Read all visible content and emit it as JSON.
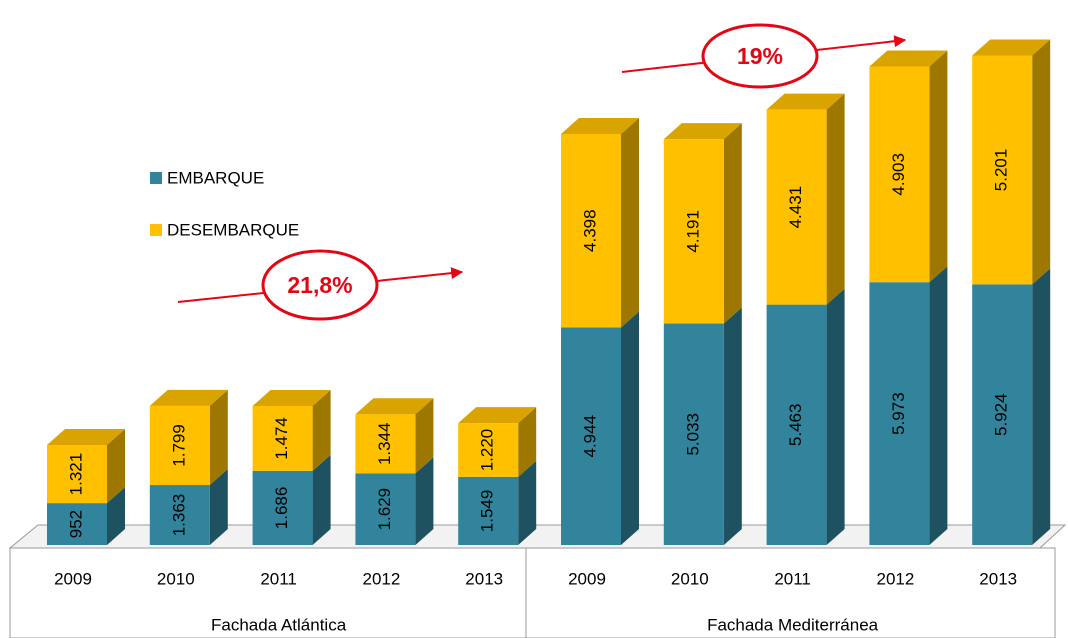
{
  "chart_data": {
    "type": "bar3d-stacked",
    "categories": [
      "2009",
      "2010",
      "2011",
      "2012",
      "2013",
      "2009",
      "2010",
      "2011",
      "2012",
      "2013"
    ],
    "groups": [
      "Fachada Atlántica",
      "Fachada Mediterránea"
    ],
    "series": [
      {
        "name": "EMBARQUE",
        "color": "#31849b",
        "values": [
          952,
          1363,
          1686,
          1629,
          1549,
          4944,
          5033,
          5463,
          5973,
          5924
        ],
        "value_labels": [
          "952",
          "1.363",
          "1.686",
          "1.629",
          "1.549",
          "4.944",
          "5.033",
          "5.463",
          "5.973",
          "5.924"
        ]
      },
      {
        "name": "DESEMBARQUE",
        "color": "#ffc000",
        "values": [
          1321,
          1799,
          1474,
          1344,
          1220,
          4398,
          4191,
          4431,
          4903,
          5201
        ],
        "value_labels": [
          "1.321",
          "1.799",
          "1.474",
          "1.344",
          "1.220",
          "4.398",
          "4.191",
          "4.431",
          "4.903",
          "5.201"
        ]
      }
    ],
    "annotations": [
      "21,8%",
      "19%"
    ]
  }
}
